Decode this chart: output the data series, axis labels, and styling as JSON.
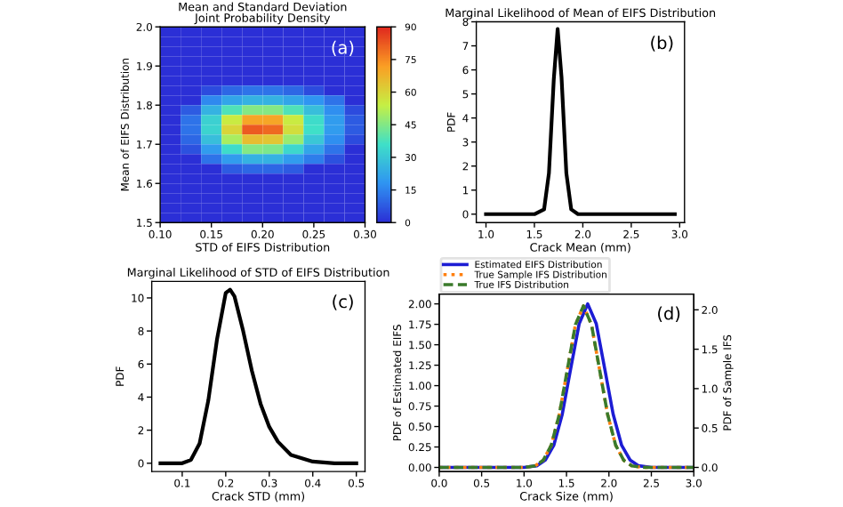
{
  "chart_data": [
    {
      "type": "heatmap",
      "title": "Mean and Standard Deviation\nJoint Probability Density",
      "xlabel": "STD of EIFS Distribution",
      "ylabel": "Mean of EIFS Distribution",
      "x": [
        0.11,
        0.13,
        0.15,
        0.17,
        0.19,
        0.21,
        0.23,
        0.25,
        0.27,
        0.29
      ],
      "y": [
        1.9875,
        1.9625,
        1.9375,
        1.9125,
        1.8875,
        1.8625,
        1.8375,
        1.8125,
        1.7875,
        1.7625,
        1.7375,
        1.7125,
        1.6875,
        1.6625,
        1.6375,
        1.6125,
        1.5875,
        1.5625,
        1.5375,
        1.5125
      ],
      "cells": [
        [
          0,
          0,
          0,
          0,
          0,
          0,
          0,
          0,
          0,
          0
        ],
        [
          0,
          0,
          0,
          0,
          0,
          0,
          0,
          0,
          0,
          0
        ],
        [
          0,
          0,
          0,
          0,
          0,
          0,
          0,
          0,
          0,
          0
        ],
        [
          0,
          0,
          0,
          0,
          0,
          0,
          0,
          0,
          0,
          0
        ],
        [
          0,
          0,
          0,
          0,
          0,
          0,
          0,
          0,
          0,
          0
        ],
        [
          0,
          0,
          0,
          0,
          0,
          0,
          0,
          0,
          0,
          0
        ],
        [
          0,
          0,
          5,
          10,
          12,
          12,
          10,
          5,
          0,
          0
        ],
        [
          0,
          0,
          16,
          22,
          25,
          25,
          22,
          18,
          12,
          0
        ],
        [
          0,
          8,
          25,
          38,
          45,
          45,
          38,
          28,
          17,
          5
        ],
        [
          0,
          12,
          32,
          55,
          70,
          70,
          55,
          35,
          20,
          8
        ],
        [
          0,
          12,
          33,
          60,
          82,
          80,
          58,
          36,
          20,
          8
        ],
        [
          0,
          10,
          28,
          50,
          65,
          63,
          48,
          30,
          17,
          5
        ],
        [
          0,
          6,
          20,
          35,
          45,
          44,
          34,
          22,
          12,
          0
        ],
        [
          0,
          0,
          12,
          20,
          25,
          25,
          20,
          14,
          6,
          0
        ],
        [
          0,
          0,
          0,
          8,
          10,
          10,
          8,
          0,
          0,
          0
        ],
        [
          0,
          0,
          0,
          0,
          0,
          0,
          0,
          0,
          0,
          0
        ],
        [
          0,
          0,
          0,
          0,
          0,
          0,
          0,
          0,
          0,
          0
        ],
        [
          0,
          0,
          0,
          0,
          0,
          0,
          0,
          0,
          0,
          0
        ],
        [
          0,
          0,
          0,
          0,
          0,
          0,
          0,
          0,
          0,
          0
        ],
        [
          0,
          0,
          0,
          0,
          0,
          0,
          0,
          0,
          0,
          0
        ]
      ],
      "clim": [
        0,
        90
      ],
      "cticks": [
        0,
        15,
        30,
        45,
        60,
        75,
        90
      ],
      "colors": [
        "#2b2fd6",
        "#2f95f2",
        "#3fe0c8",
        "#c6f044",
        "#fb9e24",
        "#e0281e"
      ],
      "xlim": [
        0.1,
        0.3
      ],
      "xticks": [
        {
          "value": 0.1,
          "label": "0.10"
        },
        {
          "value": 0.15,
          "label": "0.15"
        },
        {
          "value": 0.2,
          "label": "0.20"
        },
        {
          "value": 0.25,
          "label": "0.25"
        },
        {
          "value": 0.3,
          "label": "0.30"
        }
      ],
      "ylim": [
        1.5,
        2.0
      ],
      "yticks": [
        1.5,
        1.6,
        1.7,
        1.8,
        1.9,
        {
          "value": 2.0,
          "label": "2.0"
        }
      ],
      "annotations": [
        "(a)"
      ]
    },
    {
      "type": "line",
      "title": "Marginal Likelihood of Mean of EIFS Distribution",
      "xlabel": "Crack Mean (mm)",
      "ylabel": "PDF",
      "series": [
        {
          "color": "#000000",
          "x": [
            1.0,
            1.5,
            1.6,
            1.65,
            1.7,
            1.74,
            1.78,
            1.83,
            1.88,
            1.95,
            2.95
          ],
          "values": [
            0,
            0,
            0.2,
            1.7,
            5.6,
            7.7,
            5.7,
            1.7,
            0.2,
            0,
            0
          ]
        }
      ],
      "xlim": [
        0.9,
        3.05
      ],
      "xticks": [
        {
          "value": 1.0,
          "label": "1.0"
        },
        1.5,
        {
          "value": 2.0,
          "label": "2.0"
        },
        2.5,
        {
          "value": 3.0,
          "label": "3.0"
        }
      ],
      "ylim": [
        -0.35,
        8.0
      ],
      "yticks": [
        0,
        1,
        2,
        3,
        4,
        5,
        6,
        7,
        8
      ],
      "annotations": [
        "(b)"
      ]
    },
    {
      "type": "line",
      "title": "Marginal Likelihood of STD of EIFS Distribution",
      "xlabel": "Crack STD (mm)",
      "ylabel": "PDF",
      "series": [
        {
          "color": "#000000",
          "x": [
            0.05,
            0.1,
            0.12,
            0.14,
            0.16,
            0.18,
            0.2,
            0.21,
            0.22,
            0.24,
            0.26,
            0.28,
            0.3,
            0.32,
            0.35,
            0.4,
            0.45,
            0.5
          ],
          "values": [
            0,
            0,
            0.2,
            1.2,
            3.8,
            7.5,
            10.3,
            10.5,
            10.1,
            8.0,
            5.6,
            3.6,
            2.2,
            1.3,
            0.5,
            0.1,
            0,
            0
          ]
        }
      ],
      "xlim": [
        0.03,
        0.52
      ],
      "xticks": [
        0.1,
        0.2,
        0.3,
        0.4,
        0.5
      ],
      "ylim": [
        -0.5,
        11
      ],
      "yticks": [
        0,
        2,
        4,
        6,
        8,
        10
      ],
      "annotations": [
        "(c)"
      ]
    },
    {
      "type": "line",
      "xlabel": "Crack Size (mm)",
      "ylabel": "PDF of Estimated EIFS",
      "y2label": "PDF of Sample IFS",
      "legend": "top",
      "series": [
        {
          "name": "Estimated EIFS Distribution",
          "color": "#1c1cd4",
          "line_style": "solid",
          "x": [
            0,
            1.0,
            1.15,
            1.25,
            1.35,
            1.45,
            1.55,
            1.65,
            1.75,
            1.85,
            1.95,
            2.05,
            2.15,
            2.25,
            2.35,
            2.5,
            3.0
          ],
          "values": [
            0,
            0,
            0.02,
            0.09,
            0.27,
            0.65,
            1.21,
            1.76,
            2.0,
            1.76,
            1.21,
            0.65,
            0.27,
            0.09,
            0.02,
            0,
            0
          ]
        },
        {
          "name": "True Sample IFS Distribution",
          "color": "#ff7f0e",
          "line_style": "dotted",
          "axis": "y2",
          "x": [
            0,
            1.0,
            1.13,
            1.225,
            1.32,
            1.415,
            1.51,
            1.605,
            1.7,
            1.795,
            1.89,
            1.985,
            2.08,
            2.175,
            2.27,
            2.4,
            3.0
          ],
          "values": [
            0,
            0,
            0.02,
            0.09,
            0.28,
            0.67,
            1.24,
            1.81,
            2.05,
            1.81,
            1.24,
            0.67,
            0.28,
            0.09,
            0.02,
            0,
            0
          ]
        },
        {
          "name": "True IFS Distribution",
          "color": "#3a7a2a",
          "line_style": "dashed",
          "axis": "y2",
          "x": [
            0,
            1.0,
            1.13,
            1.225,
            1.32,
            1.415,
            1.51,
            1.605,
            1.7,
            1.795,
            1.89,
            1.985,
            2.08,
            2.175,
            2.27,
            2.4,
            3.0
          ],
          "values": [
            0,
            0,
            0.02,
            0.09,
            0.28,
            0.67,
            1.24,
            1.81,
            2.05,
            1.81,
            1.24,
            0.67,
            0.28,
            0.09,
            0.02,
            0,
            0
          ]
        }
      ],
      "xlim": [
        0,
        3
      ],
      "xticks": [
        {
          "value": 0,
          "label": "0.0"
        },
        0.5,
        {
          "value": 1,
          "label": "1.0"
        },
        1.5,
        {
          "value": 2,
          "label": "2.0"
        },
        2.5,
        {
          "value": 3,
          "label": "3.0"
        }
      ],
      "ylim": [
        -0.05,
        2.12
      ],
      "yticks": [
        {
          "value": 0,
          "label": "0.00"
        },
        0.25,
        {
          "value": 0.5,
          "label": "0.50"
        },
        0.75,
        {
          "value": 1,
          "label": "1.00"
        },
        1.25,
        {
          "value": 1.5,
          "label": "1.50"
        },
        1.75,
        {
          "value": 2,
          "label": "2.00"
        }
      ],
      "y2lim": [
        -0.052,
        2.2
      ],
      "y2ticks": [
        {
          "value": 0,
          "label": "0.0"
        },
        0.5,
        {
          "value": 1,
          "label": "1.0"
        },
        1.5,
        {
          "value": 2,
          "label": "2.0"
        }
      ],
      "annotations": [
        "(d)"
      ]
    }
  ]
}
